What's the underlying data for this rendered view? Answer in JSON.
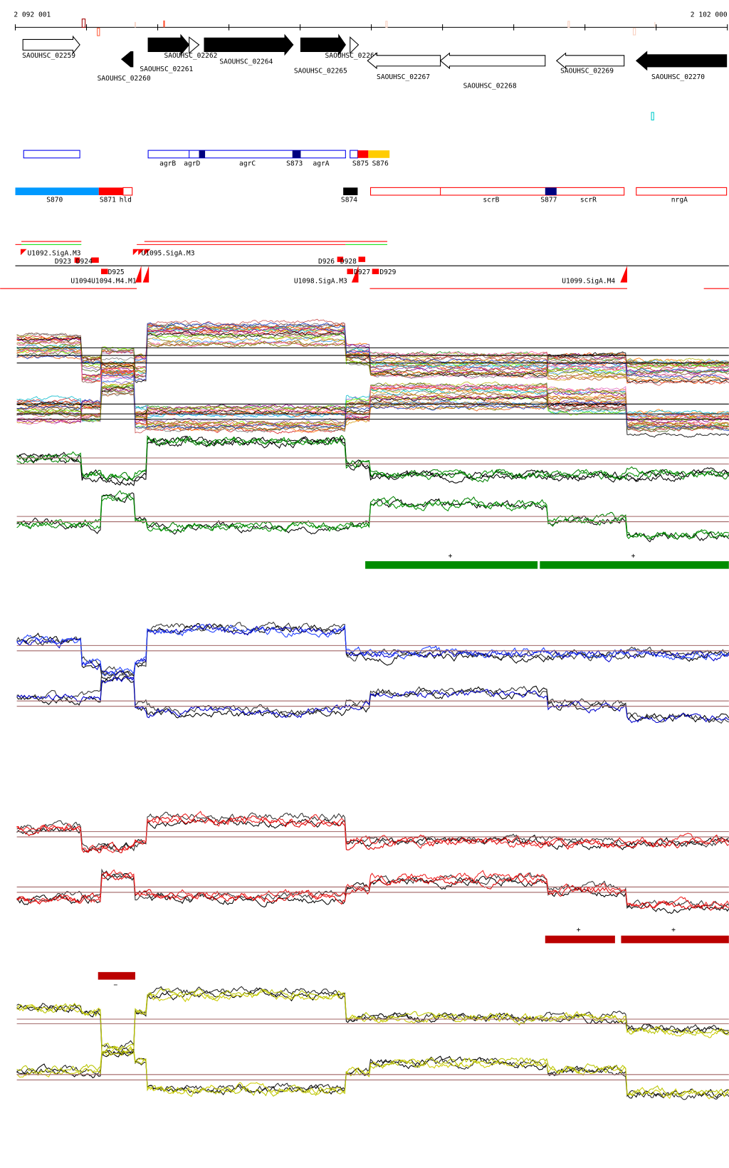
{
  "axis": {
    "start_label": "2 092 001",
    "end_label": "2 102 000",
    "start": 2092001,
    "end": 2102000
  },
  "genes": [
    {
      "label": "SAOUHSC_02259"
    },
    {
      "label": "SAOUHSC_02260"
    },
    {
      "label": "SAOUHSC_02261"
    },
    {
      "label": "SAOUHSC_02262"
    },
    {
      "label": "SAOUHSC_02264"
    },
    {
      "label": "SAOUHSC_02265"
    },
    {
      "label": "SAOUHSC_02266"
    },
    {
      "label": "SAOUHSC_02267"
    },
    {
      "label": "SAOUHSC_02268"
    },
    {
      "label": "SAOUHSC_02269"
    },
    {
      "label": "SAOUHSC_02270"
    }
  ],
  "annotations": {
    "row1": [
      "agrB",
      "agrD",
      "agrC",
      "S873",
      "agrA",
      "S875",
      "S876"
    ],
    "row2": [
      "S870",
      "S871",
      "hld",
      "S874",
      "scrB",
      "S877",
      "scrR",
      "nrgA"
    ]
  },
  "tss": [
    "U1092.SigA.M3",
    "D923",
    "D924",
    "D925",
    "U1094U1094.M4.M1",
    "U1095.SigA.M3",
    "U1098.SigA.M3",
    "D926",
    "D928",
    "D927",
    "D929",
    "U1099.SigA.M4"
  ],
  "strand_labels": {
    "plus": "+",
    "minus": "−"
  },
  "breakpoints": [
    2092001,
    2092939,
    2093195,
    2093685,
    2093845,
    2096638,
    2096979,
    2099463,
    2100582,
    2102000
  ],
  "panels": [
    {
      "name": "expression-multi-plus",
      "levels": [
        1.3,
        -1.7,
        -0.7,
        -1.7,
        2.8,
        0.3,
        -1.2,
        -1.4,
        -2.0
      ],
      "ref": [
        1,
        0,
        -1
      ],
      "ref_color": "#000000",
      "colors": [
        "#e8601c",
        "#d62728",
        "#ff7f0e",
        "#2ca02c",
        "#9467bd",
        "#8c564b",
        "#e377c2",
        "#7f7f7f",
        "#bcbd22",
        "#17becf",
        "#c0392b",
        "#7cfc00",
        "#4daaff",
        "#b15928",
        "#a6761d",
        "#ff4500",
        "#daa520",
        "#8b008b",
        "#000000",
        "#556b2f",
        "#cd5c5c",
        "#ff69b4",
        "#808000",
        "#1f3fbf"
      ]
    },
    {
      "name": "expression-multi-minus",
      "levels": [
        0.5,
        0.5,
        4.0,
        -0.7,
        -0.7,
        0.5,
        2.3,
        1.7,
        -1.3
      ],
      "ref": [
        1.3,
        -0.7,
        -0.0
      ],
      "ref_color": "#000000",
      "colors": [
        "#e8601c",
        "#d62728",
        "#ff7f0e",
        "#2ca02c",
        "#9467bd",
        "#8c564b",
        "#e377c2",
        "#7f7f7f",
        "#bcbd22",
        "#17becf",
        "#c0392b",
        "#7cfc00",
        "#4daaff",
        "#b15928",
        "#a6761d",
        "#ff4500",
        "#daa520",
        "#8b008b",
        "#000000",
        "#556b2f",
        "#cd5c5c",
        "#ff69b4",
        "#808000",
        "#1f3fbf"
      ]
    },
    {
      "name": "green-plus",
      "levels": [
        0.4,
        -1.8,
        -2.3,
        -1.8,
        2.5,
        -0.3,
        -1.8,
        -1.8,
        -1.8
      ],
      "ref": [
        0.4,
        -0.4
      ],
      "ref_color": "#a06464",
      "colors": [
        "#000000",
        "#008000",
        "#000000",
        "#009000"
      ]
    },
    {
      "name": "green-minus",
      "levels": [
        -0.65,
        -0.65,
        2.85,
        -0.15,
        -1.15,
        -0.65,
        1.85,
        -0.15,
        -2.15
      ],
      "ref": [
        0.35,
        -0.35
      ],
      "ref_color": "#a06464",
      "colors": [
        "#000000",
        "#008000",
        "#009000"
      ]
    },
    {
      "name": "blue-plus",
      "levels": [
        1.05,
        -2.15,
        -3.15,
        -1.65,
        2.35,
        -0.85,
        -0.85,
        -0.85,
        -0.85
      ],
      "ref": [
        0.35,
        -0.35
      ],
      "ref_color": "#a06464",
      "colors": [
        "#000000",
        "#333333",
        "#0000cc",
        "#2040ff"
      ]
    },
    {
      "name": "blue-minus",
      "levels": [
        0.85,
        1.15,
        3.35,
        -0.35,
        -1.15,
        -0.35,
        1.45,
        -0.15,
        -1.85
      ],
      "ref": [
        0.35,
        -0.35
      ],
      "ref_color": "#a06464",
      "colors": [
        "#000000",
        "#333333",
        "#0000cc"
      ]
    },
    {
      "name": "red-plus",
      "levels": [
        0.65,
        -1.95,
        -1.65,
        -1.15,
        1.85,
        -0.95,
        -0.95,
        -0.95,
        -0.95
      ],
      "ref": [
        0.35,
        -0.35
      ],
      "ref_color": "#a06464",
      "colors": [
        "#000000",
        "#333333",
        "#dd0000",
        "#ee2222"
      ]
    },
    {
      "name": "red-minus",
      "levels": [
        -1.35,
        -1.35,
        1.65,
        -0.85,
        -0.85,
        0.15,
        1.35,
        -0.05,
        -2.15
      ],
      "ref": [
        0.35,
        -0.35
      ],
      "ref_color": "#a06464",
      "colors": [
        "#000000",
        "#333333",
        "#dd0000",
        "#ee2222"
      ]
    },
    {
      "name": "yellow-plus",
      "levels": [
        1.7,
        1.3,
        -3.7,
        1.5,
        3.5,
        0.5,
        0.5,
        0.5,
        -1.0
      ],
      "ref": [
        0.3,
        -0.3
      ],
      "ref_color": "#a06464",
      "colors": [
        "#000000",
        "#222222",
        "#cccc00",
        "#b8c400"
      ]
    },
    {
      "name": "yellow-minus",
      "levels": [
        0.85,
        0.85,
        3.55,
        1.85,
        -1.65,
        0.85,
        1.65,
        0.85,
        -2.15
      ],
      "ref": [
        0.35,
        -0.35
      ],
      "ref_color": "#a06464",
      "colors": [
        "#000000",
        "#222222",
        "#cccc00",
        "#b8c400"
      ]
    }
  ],
  "colors": {
    "green_bar": "#008c00",
    "red_bar": "#bb0000",
    "agr_blue": "#0000ee",
    "navy": "#000080",
    "sky": "#0099ff",
    "yellow": "#ffcc00",
    "red": "#ff0000"
  }
}
